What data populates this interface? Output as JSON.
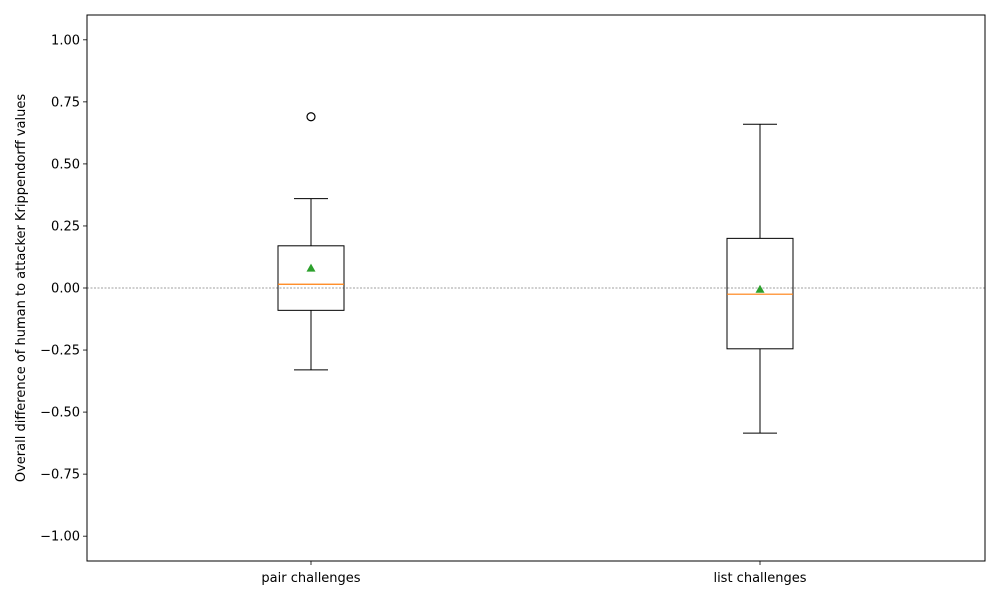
{
  "chart_data": {
    "type": "box",
    "title": "",
    "xlabel": "",
    "ylabel": "Overall difference of human to attacker Krippendorff values",
    "ylim": [
      -1.1,
      1.1
    ],
    "yticks": [
      -1.0,
      -0.75,
      -0.5,
      -0.25,
      0.0,
      0.25,
      0.5,
      0.75,
      1.0
    ],
    "ytick_labels": [
      "−1.00",
      "−0.75",
      "−0.50",
      "−0.25",
      "0.00",
      "0.25",
      "0.50",
      "0.75",
      "1.00"
    ],
    "reference_line": 0.0,
    "categories": [
      "pair challenges",
      "list challenges"
    ],
    "boxes": [
      {
        "label": "pair challenges",
        "whisker_low": -0.33,
        "q1": -0.09,
        "median": 0.015,
        "q3": 0.17,
        "whisker_high": 0.36,
        "mean": 0.08,
        "outliers": [
          0.69
        ]
      },
      {
        "label": "list challenges",
        "whisker_low": -0.585,
        "q1": -0.245,
        "median": -0.025,
        "q3": 0.2,
        "whisker_high": 0.66,
        "mean": -0.005,
        "outliers": []
      }
    ],
    "colors": {
      "box": "#000000",
      "median": "#ff7f0e",
      "mean": "#2ca02c",
      "reference_line": "#808080"
    }
  }
}
